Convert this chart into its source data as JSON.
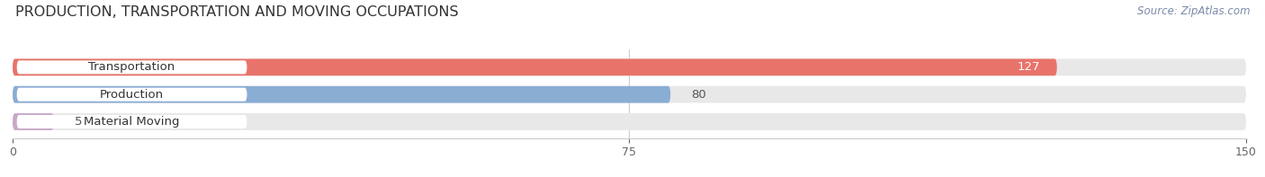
{
  "title": "PRODUCTION, TRANSPORTATION AND MOVING OCCUPATIONS",
  "source_text": "Source: ZipAtlas.com",
  "categories": [
    "Transportation",
    "Production",
    "Material Moving"
  ],
  "values": [
    127,
    80,
    5
  ],
  "bar_colors": [
    "#E8736A",
    "#8AADD4",
    "#C9A8C8"
  ],
  "bar_bg_color": "#E8E8E8",
  "xlim": [
    0,
    150
  ],
  "xticks": [
    0,
    75,
    150
  ],
  "title_fontsize": 11.5,
  "label_fontsize": 9.5,
  "value_fontsize": 9.5,
  "bar_height": 0.62,
  "background_color": "#FFFFFF",
  "label_pill_color": "#FFFFFF",
  "label_text_color": "#333333",
  "value_inside_color": "#FFFFFF",
  "value_outside_color": "#555555"
}
